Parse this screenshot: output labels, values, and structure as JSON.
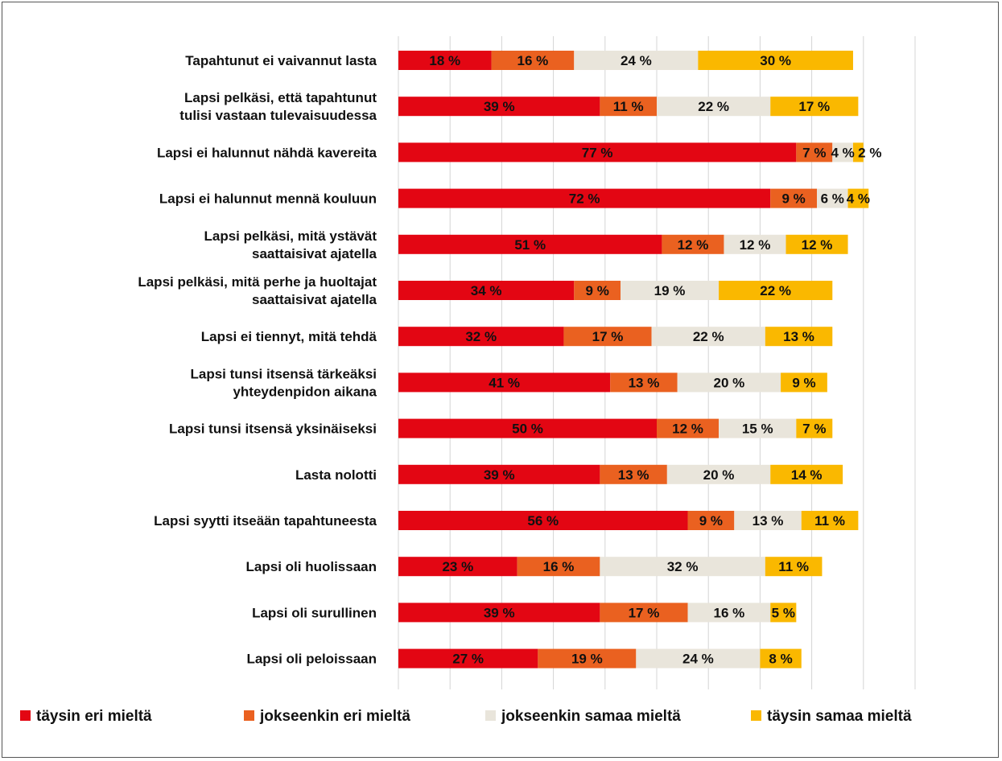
{
  "chart_data": {
    "type": "bar",
    "orientation": "horizontal",
    "stacked": true,
    "title": "",
    "xlabel": "",
    "ylabel": "",
    "xlim": [
      0,
      100
    ],
    "grid": true,
    "legend_position": "bottom",
    "categories": [
      [
        "Tapahtunut ei vaivannut lasta"
      ],
      [
        "Lapsi pelkäsi, että tapahtunut",
        "tulisi vastaan tulevaisuudessa"
      ],
      [
        "Lapsi ei halunnut nähdä kavereita"
      ],
      [
        "Lapsi ei halunnut mennä kouluun"
      ],
      [
        "Lapsi pelkäsi, mitä ystävät",
        "saattaisivat ajatella"
      ],
      [
        "Lapsi pelkäsi, mitä perhe ja huoltajat",
        "saattaisivat ajatella"
      ],
      [
        "Lapsi ei tiennyt, mitä tehdä"
      ],
      [
        "Lapsi tunsi itsensä tärkeäksi",
        "yhteydenpidon aikana"
      ],
      [
        "Lapsi tunsi itsensä yksinäiseksi"
      ],
      [
        "Lasta nolotti"
      ],
      [
        "Lapsi syytti itseään tapahtuneesta"
      ],
      [
        "Lapsi oli huolissaan"
      ],
      [
        "Lapsi oli surullinen"
      ],
      [
        "Lapsi oli peloissaan"
      ]
    ],
    "series": [
      {
        "name": "täysin eri mieltä",
        "color": "#e30613",
        "values": [
          18,
          39,
          77,
          72,
          51,
          34,
          32,
          41,
          50,
          39,
          56,
          23,
          39,
          27
        ]
      },
      {
        "name": "jokseenkin eri mieltä",
        "color": "#ea6120",
        "values": [
          16,
          11,
          7,
          9,
          12,
          9,
          17,
          13,
          12,
          13,
          9,
          16,
          17,
          19
        ]
      },
      {
        "name": "jokseenkin samaa mieltä",
        "color": "#e9e5db",
        "values": [
          24,
          22,
          4,
          6,
          12,
          19,
          22,
          20,
          15,
          20,
          13,
          32,
          16,
          24
        ]
      },
      {
        "name": "täysin samaa mieltä",
        "color": "#fab800",
        "values": [
          30,
          17,
          2,
          4,
          12,
          22,
          13,
          9,
          7,
          14,
          11,
          11,
          5,
          8
        ]
      }
    ],
    "value_suffix": " %"
  }
}
